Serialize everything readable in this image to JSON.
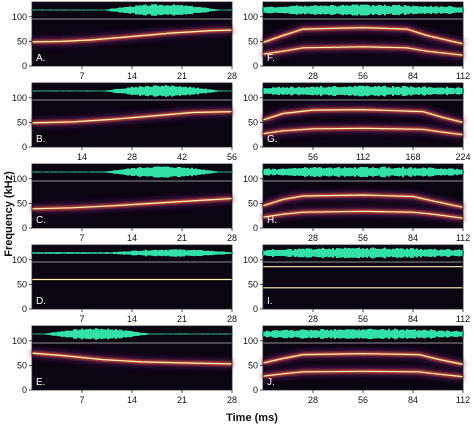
{
  "figure": {
    "ylabel": "Frequency (kHz)",
    "xlabel": "Time (ms)"
  },
  "colors": {
    "background": "#0a0510",
    "waveform": "#33e0a8",
    "trace_core": "#fff3b0",
    "trace_glow": "#e2562c",
    "trace_halo": "#6a1a6e"
  },
  "chart_data": [
    {
      "label": "A.",
      "type": "spectrogram",
      "x_ticks": [
        "7",
        "14",
        "21",
        "28"
      ],
      "xlim": [
        0,
        28
      ],
      "y_ticks": [
        "0",
        "50",
        "100"
      ],
      "ylim": [
        0,
        130
      ],
      "traces": [
        {
          "t": [
            0,
            0.15,
            0.3,
            0.5,
            0.7,
            0.9,
            1
          ],
          "f": [
            49,
            50,
            53,
            60,
            67,
            72,
            73
          ]
        }
      ]
    },
    {
      "label": "B.",
      "type": "spectrogram",
      "x_ticks": [
        "14",
        "28",
        "42",
        "56"
      ],
      "xlim": [
        0,
        56
      ],
      "y_ticks": [
        "0",
        "50",
        "100"
      ],
      "ylim": [
        0,
        130
      ],
      "traces": [
        {
          "t": [
            0,
            0.2,
            0.4,
            0.6,
            0.8,
            1
          ],
          "f": [
            49,
            51,
            56,
            63,
            70,
            72
          ]
        }
      ]
    },
    {
      "label": "C.",
      "type": "spectrogram",
      "x_ticks": [
        "7",
        "14",
        "21",
        "28"
      ],
      "xlim": [
        0,
        28
      ],
      "y_ticks": [
        "0",
        "50",
        "100"
      ],
      "ylim": [
        0,
        130
      ],
      "traces": [
        {
          "t": [
            0,
            0.2,
            0.4,
            0.6,
            0.8,
            1
          ],
          "f": [
            39,
            41,
            45,
            50,
            55,
            60
          ]
        }
      ]
    },
    {
      "label": "D.",
      "type": "spectrogram",
      "x_ticks": [
        "7",
        "14",
        "21",
        "28"
      ],
      "xlim": [
        0,
        28
      ],
      "y_ticks": [
        "0",
        "50",
        "100"
      ],
      "ylim": [
        0,
        130
      ],
      "traces": [
        {
          "t": [
            0,
            0.5,
            1
          ],
          "f": [
            60,
            60,
            60
          ]
        }
      ]
    },
    {
      "label": "E.",
      "type": "spectrogram",
      "x_ticks": [
        "7",
        "14",
        "21",
        "28"
      ],
      "xlim": [
        0,
        28
      ],
      "y_ticks": [
        "0",
        "50",
        "100"
      ],
      "ylim": [
        0,
        130
      ],
      "traces": [
        {
          "t": [
            0,
            0.15,
            0.35,
            0.55,
            0.75,
            1
          ],
          "f": [
            75,
            70,
            62,
            57,
            55,
            53
          ]
        }
      ]
    },
    {
      "label": "F.",
      "type": "spectrogram",
      "x_ticks": [
        "28",
        "56",
        "84",
        "112"
      ],
      "xlim": [
        0,
        112
      ],
      "y_ticks": [
        "0",
        "50",
        "100"
      ],
      "ylim": [
        0,
        130
      ],
      "traces": [
        {
          "t": [
            0,
            0.1,
            0.2,
            0.5,
            0.72,
            0.82,
            1
          ],
          "f": [
            48,
            62,
            75,
            78,
            75,
            62,
            45
          ]
        },
        {
          "t": [
            0,
            0.1,
            0.2,
            0.5,
            0.72,
            0.82,
            1
          ],
          "f": [
            24,
            30,
            37,
            39,
            37,
            30,
            22
          ]
        }
      ]
    },
    {
      "label": "G.",
      "type": "spectrogram",
      "x_ticks": [
        "56",
        "112",
        "168",
        "224"
      ],
      "xlim": [
        0,
        224
      ],
      "y_ticks": [
        "0",
        "50",
        "100"
      ],
      "ylim": [
        0,
        130
      ],
      "traces": [
        {
          "t": [
            0,
            0.1,
            0.25,
            0.5,
            0.8,
            0.9,
            1
          ],
          "f": [
            55,
            68,
            75,
            76,
            72,
            60,
            50
          ]
        },
        {
          "t": [
            0,
            0.1,
            0.25,
            0.5,
            0.8,
            0.9,
            1
          ],
          "f": [
            27,
            33,
            37,
            38,
            36,
            30,
            25
          ]
        }
      ]
    },
    {
      "label": "H.",
      "type": "spectrogram",
      "x_ticks": [
        "28",
        "56",
        "84",
        "112"
      ],
      "xlim": [
        0,
        112
      ],
      "y_ticks": [
        "0",
        "50",
        "100"
      ],
      "ylim": [
        0,
        130
      ],
      "traces": [
        {
          "t": [
            0,
            0.1,
            0.2,
            0.5,
            0.75,
            0.85,
            1
          ],
          "f": [
            45,
            58,
            65,
            67,
            64,
            55,
            42
          ]
        },
        {
          "t": [
            0,
            0.1,
            0.2,
            0.5,
            0.75,
            0.85,
            1
          ],
          "f": [
            22,
            28,
            32,
            34,
            32,
            28,
            20
          ]
        }
      ]
    },
    {
      "label": "I.",
      "type": "spectrogram",
      "x_ticks": [
        "28",
        "56",
        "84",
        "112"
      ],
      "xlim": [
        0,
        112
      ],
      "y_ticks": [
        "0",
        "50",
        "100"
      ],
      "ylim": [
        0,
        130
      ],
      "traces": [
        {
          "t": [
            0,
            0.5,
            1
          ],
          "f": [
            86,
            86,
            86
          ]
        },
        {
          "t": [
            0,
            0.5,
            1
          ],
          "f": [
            43,
            43,
            43
          ]
        }
      ]
    },
    {
      "label": "J.",
      "type": "spectrogram",
      "x_ticks": [
        "28",
        "56",
        "84",
        "112"
      ],
      "xlim": [
        0,
        112
      ],
      "y_ticks": [
        "0",
        "50",
        "100"
      ],
      "ylim": [
        0,
        130
      ],
      "traces": [
        {
          "t": [
            0,
            0.1,
            0.2,
            0.5,
            0.78,
            0.88,
            1
          ],
          "f": [
            55,
            64,
            72,
            74,
            72,
            62,
            52
          ]
        },
        {
          "t": [
            0,
            0.1,
            0.2,
            0.5,
            0.78,
            0.88,
            1
          ],
          "f": [
            28,
            33,
            37,
            38,
            37,
            32,
            27
          ]
        }
      ]
    }
  ]
}
